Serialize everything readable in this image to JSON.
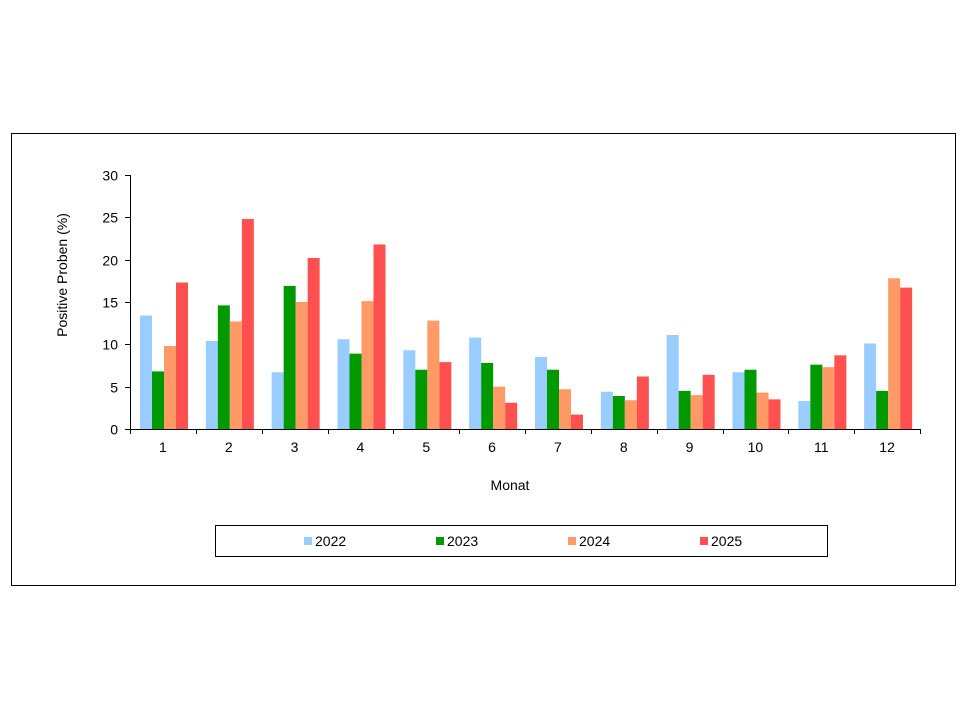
{
  "chart_data": {
    "type": "bar",
    "title": "",
    "xlabel": "Monat",
    "ylabel": "Positive Proben (%)",
    "ylim": [
      0,
      30
    ],
    "yticks": [
      "0",
      "5",
      "10",
      "15",
      "20",
      "25",
      "30"
    ],
    "categories": [
      "1",
      "2",
      "3",
      "4",
      "5",
      "6",
      "7",
      "8",
      "9",
      "10",
      "11",
      "12"
    ],
    "series": [
      {
        "name": "2022",
        "color": "#99ccff",
        "values": [
          13.4,
          10.4,
          6.7,
          10.6,
          9.3,
          10.8,
          8.5,
          4.4,
          11.1,
          6.7,
          3.3,
          10.1
        ]
      },
      {
        "name": "2023",
        "color": "#009900",
        "values": [
          6.8,
          14.6,
          16.9,
          8.9,
          7.0,
          7.8,
          7.0,
          3.9,
          4.5,
          7.0,
          7.6,
          4.5
        ]
      },
      {
        "name": "2024",
        "color": "#ff9966",
        "values": [
          9.8,
          12.7,
          15.0,
          15.1,
          12.8,
          5.0,
          4.7,
          3.4,
          4.0,
          4.3,
          7.3,
          17.8
        ]
      },
      {
        "name": "2025",
        "color": "#ff5050",
        "values": [
          17.3,
          24.8,
          20.2,
          21.8,
          7.9,
          3.1,
          1.7,
          6.2,
          6.4,
          3.5,
          8.7,
          16.7
        ]
      }
    ],
    "grid": false,
    "legend_position": "bottom"
  }
}
